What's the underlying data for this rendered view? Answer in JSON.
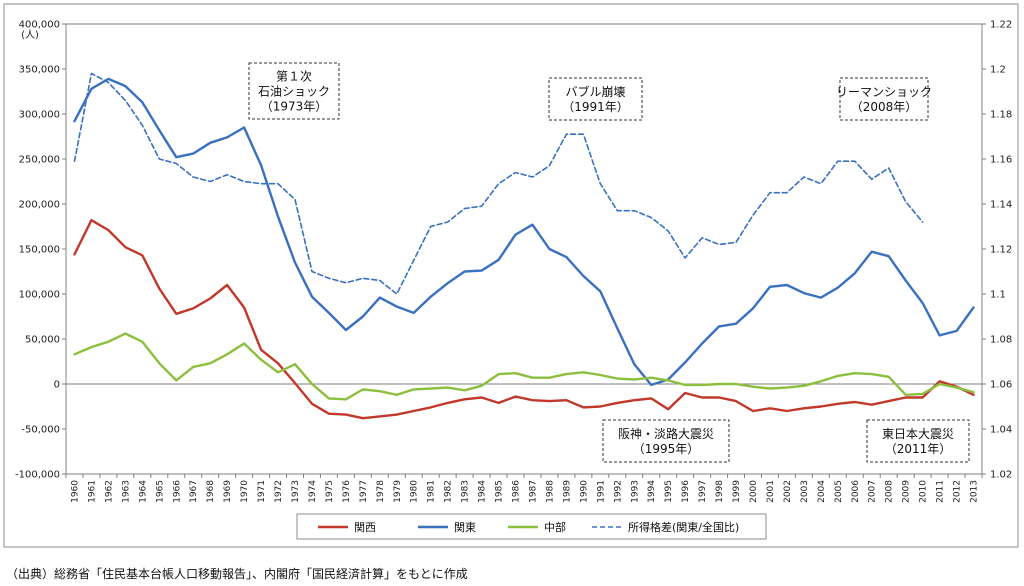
{
  "chart_data": {
    "type": "line",
    "title": "",
    "y_unit_label": "(人)",
    "ylim": [
      -100000,
      400000
    ],
    "yticks": [
      -100000,
      -50000,
      0,
      50000,
      100000,
      150000,
      200000,
      250000,
      300000,
      350000,
      400000
    ],
    "ytick_labels": [
      "-100,000",
      "-50,000",
      "0",
      "50,000",
      "100,000",
      "150,000",
      "200,000",
      "250,000",
      "300,000",
      "350,000",
      "400,000"
    ],
    "y2lim": [
      1.02,
      1.22
    ],
    "y2ticks": [
      1.02,
      1.04,
      1.06,
      1.08,
      1.1,
      1.12,
      1.14,
      1.16,
      1.18,
      1.2,
      1.22
    ],
    "y2tick_labels": [
      "1.02",
      "1.04",
      "1.06",
      "1.08",
      "1.1",
      "1.12",
      "1.14",
      "1.16",
      "1.18",
      "1.2",
      "1.22"
    ],
    "x": [
      1960,
      1961,
      1962,
      1963,
      1964,
      1965,
      1966,
      1967,
      1968,
      1969,
      1970,
      1971,
      1972,
      1973,
      1974,
      1975,
      1976,
      1977,
      1978,
      1979,
      1980,
      1981,
      1982,
      1983,
      1984,
      1985,
      1986,
      1987,
      1988,
      1989,
      1990,
      1991,
      1992,
      1993,
      1994,
      1995,
      1996,
      1997,
      1998,
      1999,
      2000,
      2001,
      2002,
      2003,
      2004,
      2005,
      2006,
      2007,
      2008,
      2009,
      2010,
      2011,
      2012,
      2013
    ],
    "series": [
      {
        "name": "関西",
        "axis": "left",
        "color": "#c0392b",
        "dash": false,
        "values": [
          144000,
          182000,
          171000,
          152000,
          143000,
          106000,
          78000,
          84000,
          95000,
          110000,
          85000,
          38000,
          23000,
          1000,
          -22000,
          -33000,
          -34000,
          -38000,
          -36000,
          -34000,
          -30000,
          -26000,
          -21000,
          -17000,
          -15000,
          -21000,
          -14000,
          -18000,
          -19000,
          -18000,
          -26000,
          -25000,
          -21000,
          -18000,
          -16000,
          -28000,
          -10000,
          -15000,
          -15000,
          -19000,
          -30000,
          -27000,
          -30000,
          -27000,
          -25000,
          -22000,
          -20000,
          -23000,
          -19000,
          -15000,
          -15000,
          3000,
          -3000,
          -12000
        ]
      },
      {
        "name": "関東",
        "axis": "left",
        "color": "#3a70c0",
        "dash": false,
        "values": [
          292000,
          328000,
          339000,
          331000,
          313000,
          282000,
          252000,
          256000,
          268000,
          274000,
          285000,
          243000,
          186000,
          135000,
          97000,
          79000,
          60000,
          75000,
          96000,
          86000,
          79000,
          97000,
          112000,
          125000,
          126000,
          138000,
          166000,
          177000,
          150000,
          141000,
          120000,
          103000,
          62000,
          22000,
          -1000,
          5000,
          24000,
          45000,
          64000,
          67000,
          84000,
          108000,
          110000,
          101000,
          96000,
          107000,
          123000,
          147000,
          142000,
          115000,
          90000,
          54000,
          59000,
          85000
        ]
      },
      {
        "name": "中部",
        "axis": "left",
        "color": "#8dbf3e",
        "dash": false,
        "values": [
          33000,
          41000,
          47000,
          56000,
          47000,
          23000,
          4000,
          19000,
          23000,
          33000,
          45000,
          27000,
          13000,
          22000,
          0,
          -16000,
          -17000,
          -6000,
          -8000,
          -12000,
          -6000,
          -5000,
          -4000,
          -7000,
          -2000,
          11000,
          12000,
          7000,
          7000,
          11000,
          13000,
          10000,
          6000,
          5000,
          7000,
          4000,
          -1000,
          -1000,
          0,
          0,
          -3000,
          -5000,
          -4000,
          -2000,
          3000,
          9000,
          12000,
          11000,
          8000,
          -12000,
          -11000,
          0,
          -4000,
          -9000
        ]
      },
      {
        "name": "所得格差(関東/全国比)",
        "axis": "right",
        "color": "#3a70c0",
        "dash": true,
        "values": [
          1.159,
          1.198,
          1.194,
          1.186,
          1.175,
          1.16,
          1.158,
          1.152,
          1.15,
          1.153,
          1.15,
          1.149,
          1.149,
          1.142,
          1.11,
          1.107,
          1.105,
          1.107,
          1.106,
          1.1,
          1.115,
          1.13,
          1.132,
          1.138,
          1.139,
          1.149,
          1.154,
          1.152,
          1.157,
          1.171,
          1.171,
          1.149,
          1.137,
          1.137,
          1.134,
          1.128,
          1.116,
          1.125,
          1.122,
          1.123,
          1.135,
          1.145,
          1.145,
          1.152,
          1.149,
          1.159,
          1.159,
          1.151,
          1.156,
          1.141,
          1.132,
          null,
          null,
          null
        ]
      }
    ],
    "annotations": [
      {
        "lines": [
          "第１次",
          "石油ショック",
          "（1973年）"
        ]
      },
      {
        "lines": [
          "バブル崩壊",
          "（1991年）"
        ]
      },
      {
        "lines": [
          "リーマンショック",
          "（2008年）"
        ]
      },
      {
        "lines": [
          "阪神・淡路大震災",
          "（1995年）"
        ]
      },
      {
        "lines": [
          "東日本大震災",
          "（2011年）"
        ]
      }
    ],
    "legend": [
      "関西",
      "関東",
      "中部",
      "所得格差(関東/全国比)"
    ],
    "legend_position": "bottom"
  },
  "source": "（出典）総務省「住民基本台帳人口移動報告」、内閣府「国民経済計算」をもとに作成"
}
